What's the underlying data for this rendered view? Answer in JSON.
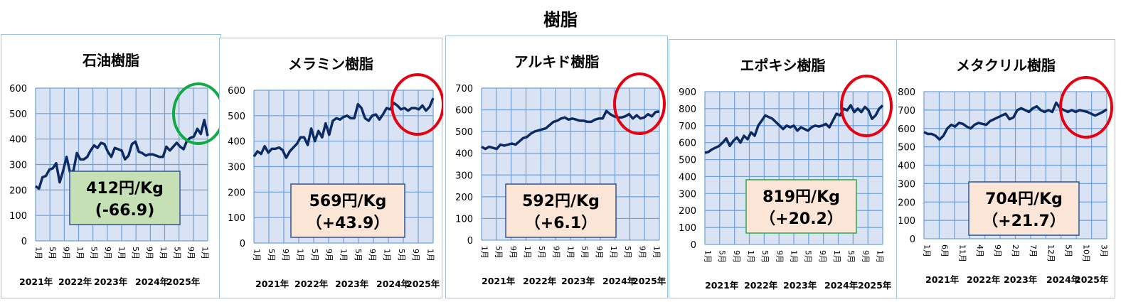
{
  "title": "樹脂",
  "colors": {
    "plot_bg": "#dae3f3",
    "grid": "#6fa0d8",
    "line": "#0c2a64",
    "circle_green": "#11aa44",
    "circle_red": "#e60012",
    "box_green_fill": "#c5e0b4",
    "box_peach_fill": "#fbe5d6",
    "box_blue_border": "#2f5597",
    "box_green_border": "#2ea84a"
  },
  "chart_data": [
    {
      "type": "line",
      "title": "石油樹脂",
      "ylim": [
        0,
        600
      ],
      "yticks": [
        "0",
        "100",
        "200",
        "300",
        "400",
        "500",
        "600"
      ],
      "xticks": [
        "1月",
        "5月",
        "9月",
        "1月",
        "5月",
        "9月",
        "1月",
        "5月",
        "9月",
        "1月",
        "5月",
        "9月",
        "1月"
      ],
      "years": [
        "2021年",
        "2022年",
        "2023年",
        "2024年",
        "2025年"
      ],
      "values": [
        215,
        205,
        250,
        255,
        280,
        285,
        305,
        230,
        275,
        330,
        270,
        275,
        345,
        320,
        320,
        330,
        355,
        375,
        365,
        385,
        380,
        350,
        330,
        365,
        360,
        355,
        320,
        335,
        380,
        390,
        350,
        345,
        335,
        340,
        340,
        335,
        330,
        330,
        370,
        355,
        370,
        385,
        370,
        360,
        395,
        405,
        410,
        440,
        420,
        475,
        412
      ],
      "price_label": "412円/Kg",
      "change_label": "(-66.9)",
      "box_style": "green",
      "circle": "green"
    },
    {
      "type": "line",
      "title": "メラミン樹脂",
      "ylim": [
        0,
        600
      ],
      "yticks": [
        "0",
        "100",
        "200",
        "300",
        "400",
        "500",
        "600"
      ],
      "xticks": [
        "1月",
        "5月",
        "9月",
        "1月",
        "5月",
        "9月",
        "1月",
        "5月",
        "9月",
        "1月",
        "5月",
        "9月",
        "1月"
      ],
      "years": [
        "2021年",
        "2022年",
        "2023年",
        "2024年",
        "2025年"
      ],
      "values": [
        340,
        360,
        350,
        380,
        355,
        370,
        370,
        375,
        365,
        335,
        360,
        375,
        390,
        415,
        415,
        385,
        450,
        400,
        440,
        415,
        470,
        425,
        480,
        490,
        485,
        495,
        500,
        490,
        490,
        545,
        530,
        490,
        480,
        500,
        505,
        485,
        505,
        530,
        525,
        550,
        540,
        525,
        530,
        520,
        530,
        530,
        525,
        540,
        520,
        535,
        569
      ],
      "price_label": "569円/Kg",
      "change_label": "（+43.9）",
      "box_style": "peach",
      "circle": "red"
    },
    {
      "type": "line",
      "title": "アルキド樹脂",
      "ylim": [
        0,
        700
      ],
      "yticks": [
        "0",
        "100",
        "200",
        "300",
        "400",
        "500",
        "600",
        "700"
      ],
      "xticks": [
        "1月",
        "5月",
        "9月",
        "1月",
        "5月",
        "9月",
        "1月",
        "5月",
        "9月",
        "1月",
        "5月",
        "9月",
        "1月"
      ],
      "years": [
        "2021年",
        "2022年",
        "2023年",
        "2024年",
        "2025年"
      ],
      "values": [
        430,
        420,
        430,
        425,
        420,
        440,
        435,
        440,
        445,
        440,
        455,
        470,
        475,
        490,
        500,
        505,
        510,
        515,
        530,
        545,
        550,
        560,
        565,
        555,
        560,
        555,
        550,
        550,
        545,
        545,
        555,
        560,
        560,
        595,
        580,
        570,
        565,
        565,
        570,
        580,
        560,
        575,
        560,
        565,
        580,
        570,
        590,
        592
      ],
      "price_label": "592円/Kg",
      "change_label": "（+6.1）",
      "box_style": "peach",
      "circle": "red"
    },
    {
      "type": "line",
      "title": "エポキシ樹脂",
      "ylim": [
        0,
        900
      ],
      "yticks": [
        "0",
        "100",
        "200",
        "300",
        "400",
        "500",
        "600",
        "700",
        "800",
        "900"
      ],
      "xticks": [
        "1月",
        "5月",
        "9月",
        "1月",
        "5月",
        "9月",
        "1月",
        "5月",
        "9月",
        "1月",
        "5月",
        "9月",
        "1月"
      ],
      "years": [
        "2021年",
        "2022年",
        "2023年",
        "2024年",
        "2025年"
      ],
      "values": [
        540,
        545,
        560,
        570,
        580,
        600,
        625,
        580,
        610,
        630,
        600,
        640,
        620,
        660,
        640,
        700,
        730,
        760,
        750,
        740,
        720,
        700,
        680,
        700,
        690,
        700,
        670,
        690,
        680,
        670,
        690,
        700,
        695,
        700,
        710,
        690,
        730,
        770,
        760,
        800,
        790,
        820,
        780,
        800,
        780,
        810,
        790,
        740,
        760,
        800,
        819
      ],
      "price_label": "819円/Kg",
      "change_label": "（+20.2）",
      "box_style": "peach_green",
      "circle": "red"
    },
    {
      "type": "line",
      "title": "メタクリル樹脂",
      "ylim": [
        0,
        800
      ],
      "yticks": [
        "0",
        "100",
        "200",
        "300",
        "400",
        "500",
        "600",
        "700",
        "800"
      ],
      "xticks": [
        "1月",
        "6月",
        "11月",
        "4月",
        "9月",
        "2月",
        "7月",
        "12月",
        "5月",
        "10月",
        "3月"
      ],
      "years": [
        "2021年",
        "2022年",
        "2023年",
        "2024年",
        "2025年"
      ],
      "values": [
        580,
        570,
        570,
        560,
        540,
        560,
        600,
        620,
        610,
        630,
        625,
        610,
        600,
        620,
        630,
        625,
        620,
        640,
        650,
        660,
        670,
        680,
        650,
        660,
        700,
        710,
        700,
        690,
        710,
        720,
        700,
        690,
        700,
        690,
        740,
        710,
        700,
        690,
        700,
        690,
        700,
        695,
        690,
        680,
        670,
        680,
        690,
        704
      ],
      "price_label": "704円/Kg",
      "change_label": "（+21.7）",
      "box_style": "peach",
      "circle": "red"
    }
  ]
}
